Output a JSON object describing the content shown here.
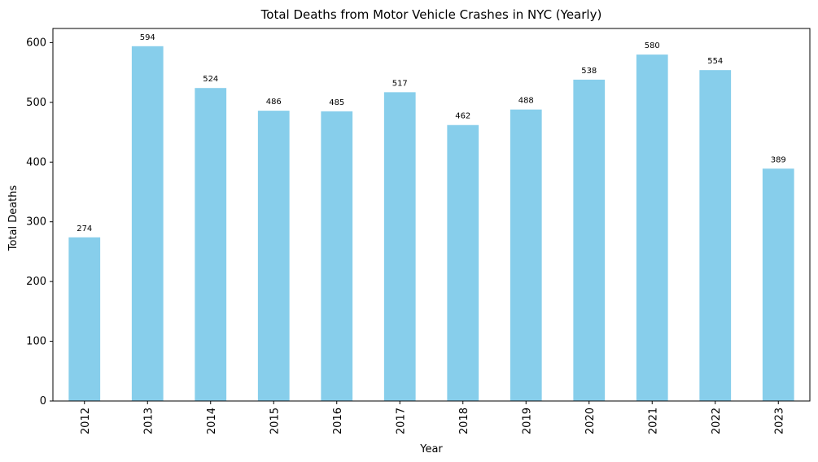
{
  "chart_data": {
    "type": "bar",
    "title": "Total Deaths from Motor Vehicle Crashes in NYC (Yearly)",
    "xlabel": "Year",
    "ylabel": "Total Deaths",
    "categories": [
      "2012",
      "2013",
      "2014",
      "2015",
      "2016",
      "2017",
      "2018",
      "2019",
      "2020",
      "2021",
      "2022",
      "2023"
    ],
    "values": [
      274,
      594,
      524,
      486,
      485,
      517,
      462,
      488,
      538,
      580,
      554,
      389
    ],
    "ylim": [
      0,
      623.7
    ],
    "yticks": [
      0,
      100,
      200,
      300,
      400,
      500,
      600
    ],
    "grid": false,
    "legend": "none",
    "bar_color": "#87CEEB"
  }
}
